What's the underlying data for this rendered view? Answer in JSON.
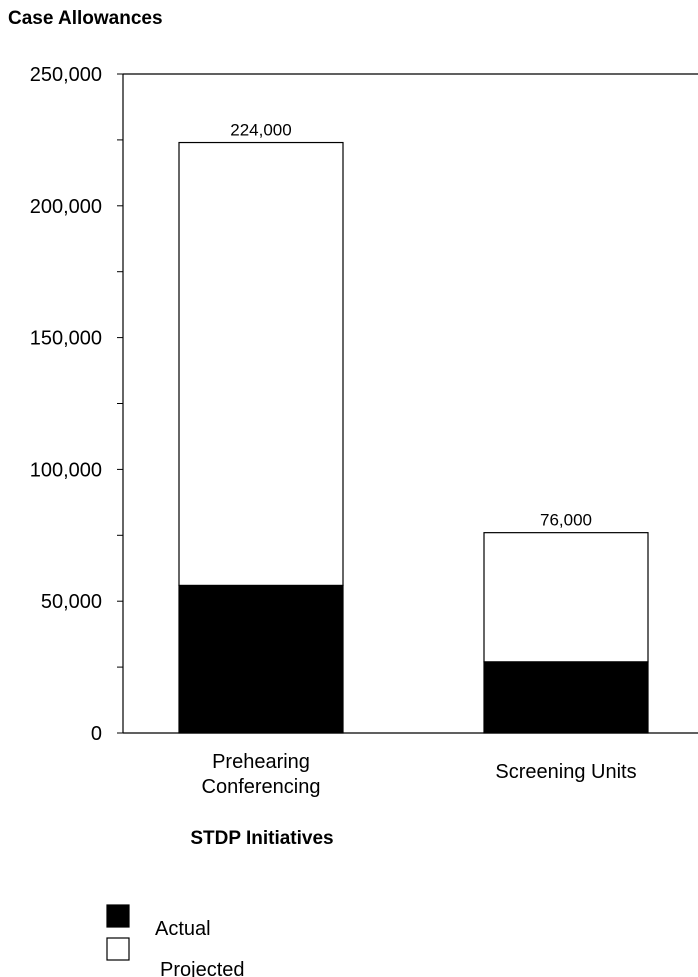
{
  "chart_data": {
    "type": "bar",
    "stacked": true,
    "ylabel": "Case Allowances",
    "xlabel": "STDP Initiatives",
    "ylim": [
      0,
      250000
    ],
    "yticks": [
      0,
      50000,
      100000,
      150000,
      200000,
      250000
    ],
    "ytick_labels": [
      "0",
      "50,000",
      "100,000",
      "150,000",
      "200,000",
      "250,000"
    ],
    "categories": [
      [
        "Prehearing",
        "Conferencing"
      ],
      [
        "Screening Units"
      ]
    ],
    "series": [
      {
        "name": "Actual",
        "values": [
          56000,
          27000
        ],
        "color": "#000000"
      },
      {
        "name": "Projected",
        "values": [
          168000,
          49000
        ],
        "color": "#ffffff"
      }
    ],
    "totals": [
      224000,
      76000
    ],
    "total_labels": [
      "224,000",
      "76,000"
    ],
    "legend": [
      "Actual",
      "Projected"
    ],
    "legend_position": "bottom-left",
    "grid": false
  }
}
